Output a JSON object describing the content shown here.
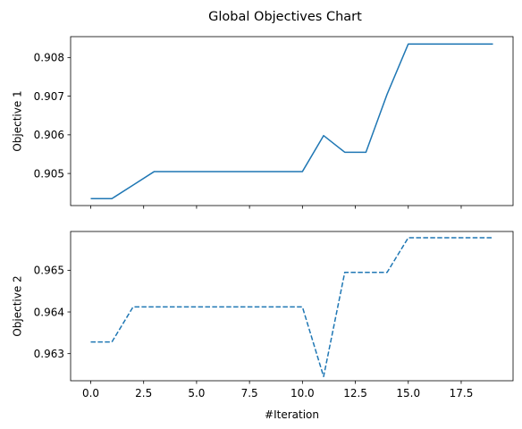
{
  "chart_data": {
    "type": "line",
    "title": "Global Objectives Chart",
    "shared_x": true,
    "xlabel": "#Iteration",
    "xlim": [
      -0.95,
      19.95
    ],
    "xticks": [
      0.0,
      2.5,
      5.0,
      7.5,
      10.0,
      12.5,
      15.0,
      17.5
    ],
    "xtick_labels": [
      "0.0",
      "2.5",
      "5.0",
      "7.5",
      "10.0",
      "12.5",
      "15.0",
      "17.5"
    ],
    "colors": {
      "series": "#1f77b4"
    },
    "subplots": [
      {
        "ylabel": "Objective 1",
        "ylim": [
          904.17,
          908.54
        ],
        "yticks": [
          905,
          906,
          907,
          908
        ],
        "ytick_labels": [
          "0.905",
          "0.906",
          "0.907",
          "0.908"
        ],
        "grid": false,
        "line_style": "solid",
        "x": [
          0,
          1,
          2,
          3,
          4,
          5,
          6,
          7,
          8,
          9,
          10,
          11,
          12,
          13,
          14,
          15,
          16,
          17,
          18,
          19
        ],
        "values": [
          0.90435,
          0.90435,
          0.9047,
          0.90505,
          0.90505,
          0.90505,
          0.90505,
          0.90505,
          0.90505,
          0.90505,
          0.90505,
          0.90598,
          0.90555,
          0.90555,
          0.90705,
          0.90835,
          0.90835,
          0.90835,
          0.90835,
          0.90835
        ]
      },
      {
        "ylabel": "Objective 2",
        "ylim": [
          962.35,
          965.93
        ],
        "yticks": [
          963,
          964,
          965
        ],
        "ytick_labels": [
          "0.963",
          "0.964",
          "0.965"
        ],
        "grid": false,
        "line_style": "dashed",
        "x": [
          0,
          1,
          2,
          3,
          4,
          5,
          6,
          7,
          8,
          9,
          10,
          11,
          12,
          13,
          14,
          15,
          16,
          17,
          18,
          19
        ],
        "values": [
          0.96328,
          0.96328,
          0.96412,
          0.96412,
          0.96412,
          0.96412,
          0.96412,
          0.96412,
          0.96412,
          0.96412,
          0.96412,
          0.96245,
          0.96495,
          0.96495,
          0.96495,
          0.96578,
          0.96578,
          0.96578,
          0.96578,
          0.96578
        ]
      }
    ]
  }
}
